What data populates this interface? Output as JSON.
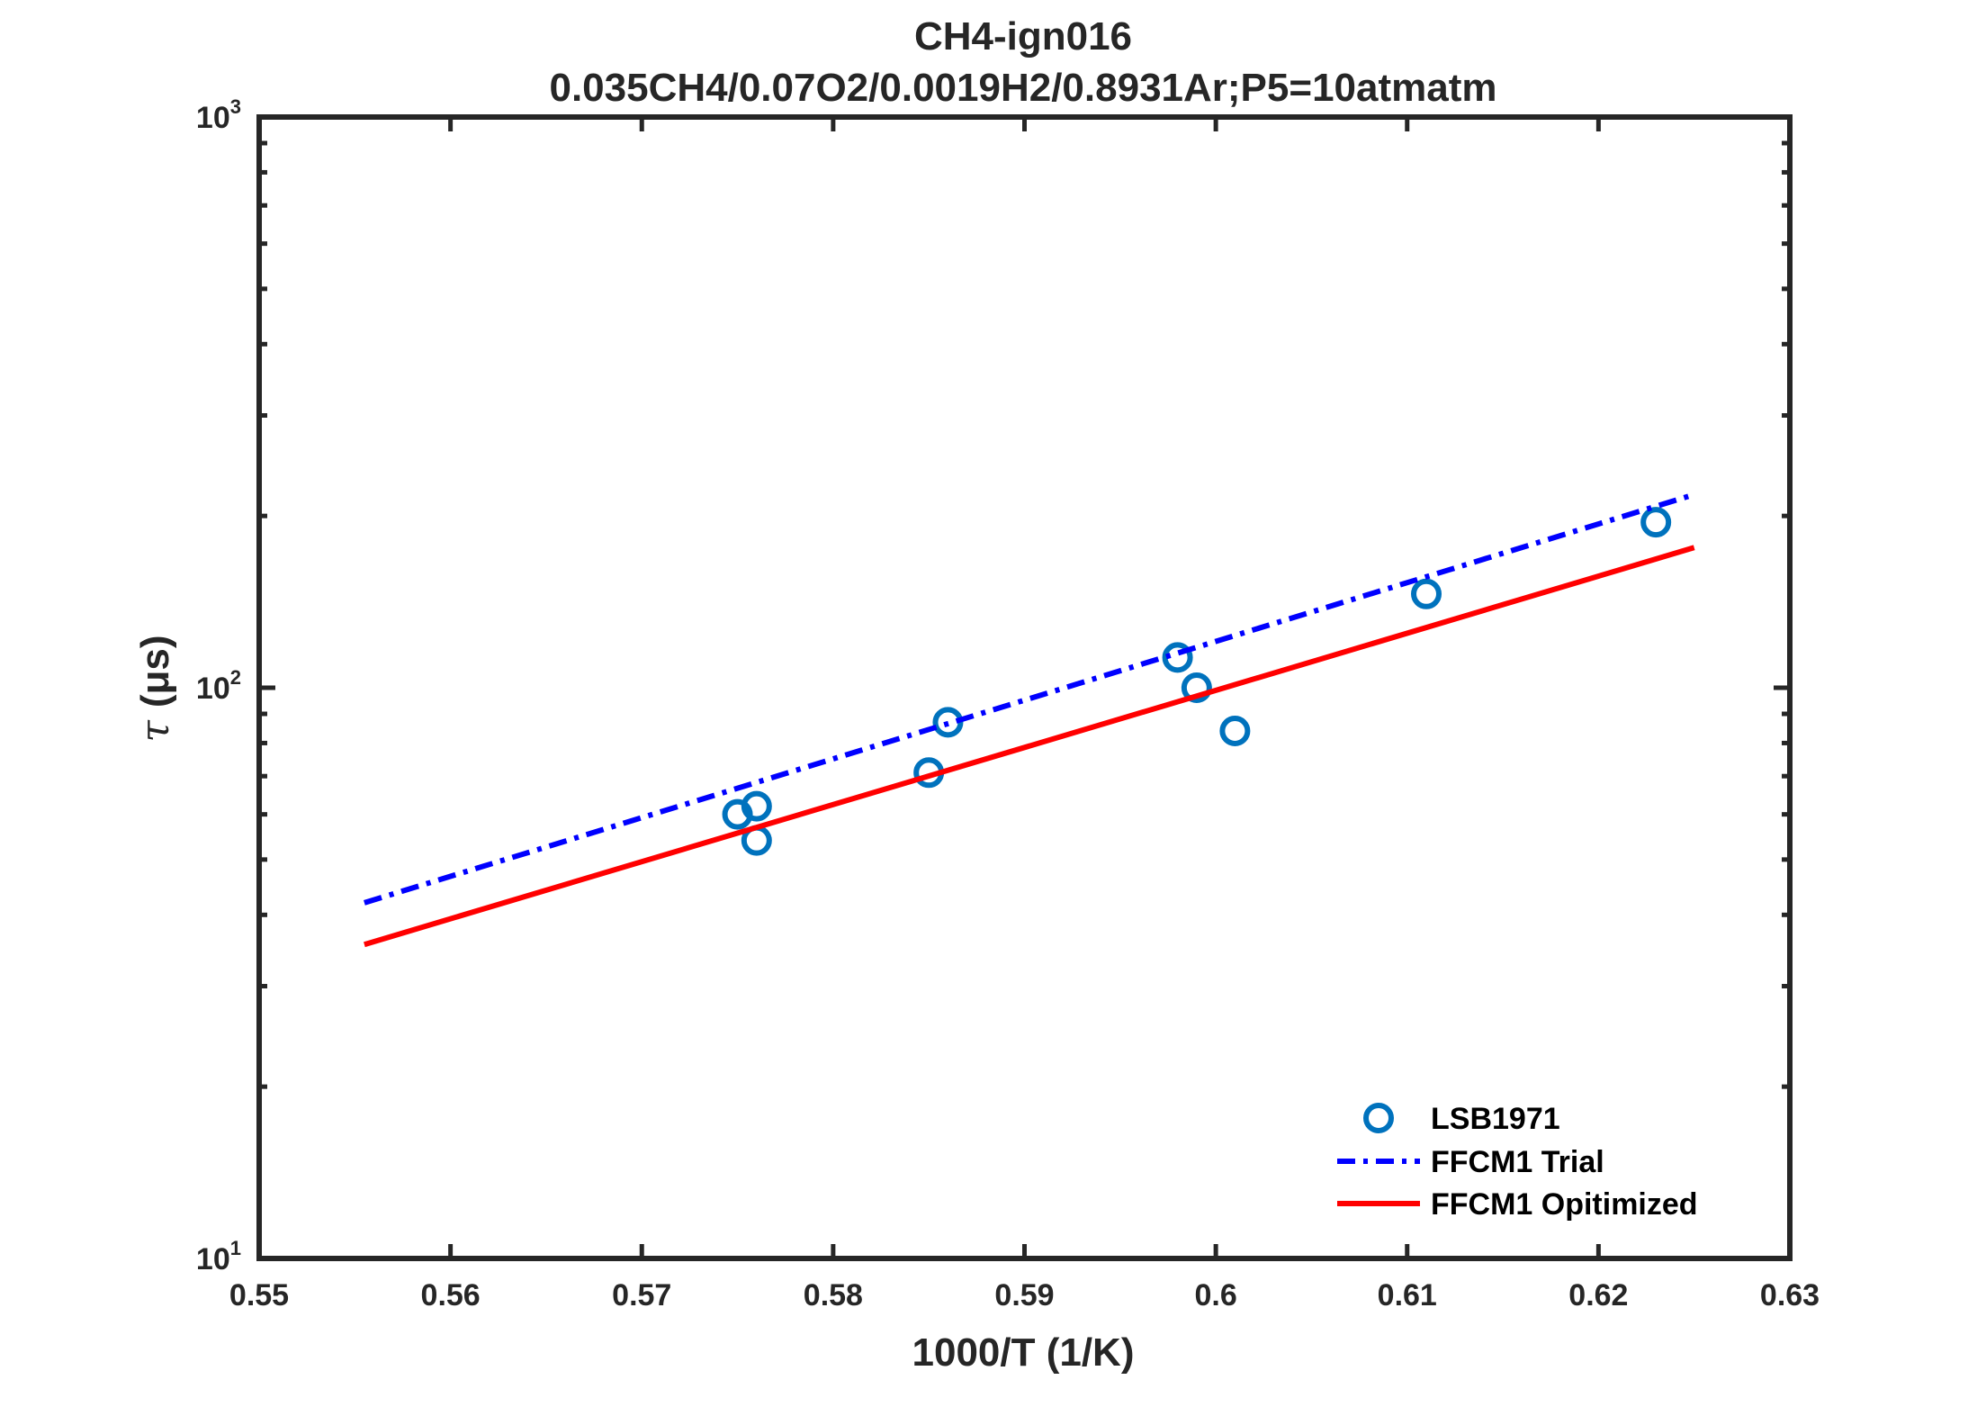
{
  "chart_data": {
    "type": "scatter",
    "title": "CH4-ign016",
    "subtitle": "0.035CH4/0.07O2/0.0019H2/0.8931Ar;P5=10atmatm",
    "xlabel": "1000/T (1/K)",
    "ylabel": {
      "symbol": "τ",
      "unit": "(μs)"
    },
    "xlim": [
      0.55,
      0.63
    ],
    "ylim": [
      10,
      1000
    ],
    "yscale": "log",
    "grid": false,
    "legend_position": "bottom-right",
    "x_ticks": [
      "0.55",
      "0.56",
      "0.57",
      "0.58",
      "0.59",
      "0.6",
      "0.61",
      "0.62",
      "0.63"
    ],
    "y_ticks": [
      {
        "base": "10",
        "exp": "1"
      },
      {
        "base": "10",
        "exp": "2"
      },
      {
        "base": "10",
        "exp": "3"
      }
    ],
    "colors": {
      "axes": "#262626",
      "LSB1971": "#0072BD",
      "FFCM1 Trial": "#0000FF",
      "FFCM1 Opitimized": "#FF0000"
    },
    "series": [
      {
        "name": "LSB1971",
        "style": "markers-circle",
        "points": [
          [
            0.575,
            60
          ],
          [
            0.576,
            62
          ],
          [
            0.576,
            54
          ],
          [
            0.585,
            71
          ],
          [
            0.586,
            87
          ],
          [
            0.598,
            113
          ],
          [
            0.599,
            100
          ],
          [
            0.601,
            84
          ],
          [
            0.611,
            146
          ],
          [
            0.623,
            195
          ]
        ]
      },
      {
        "name": "FFCM1 Trial",
        "style": "dash-dot",
        "points": [
          [
            0.5555,
            42
          ],
          [
            0.625,
            218
          ]
        ]
      },
      {
        "name": "FFCM1 Opitimized",
        "style": "solid",
        "points": [
          [
            0.5555,
            35.5
          ],
          [
            0.625,
            176
          ]
        ]
      }
    ]
  }
}
